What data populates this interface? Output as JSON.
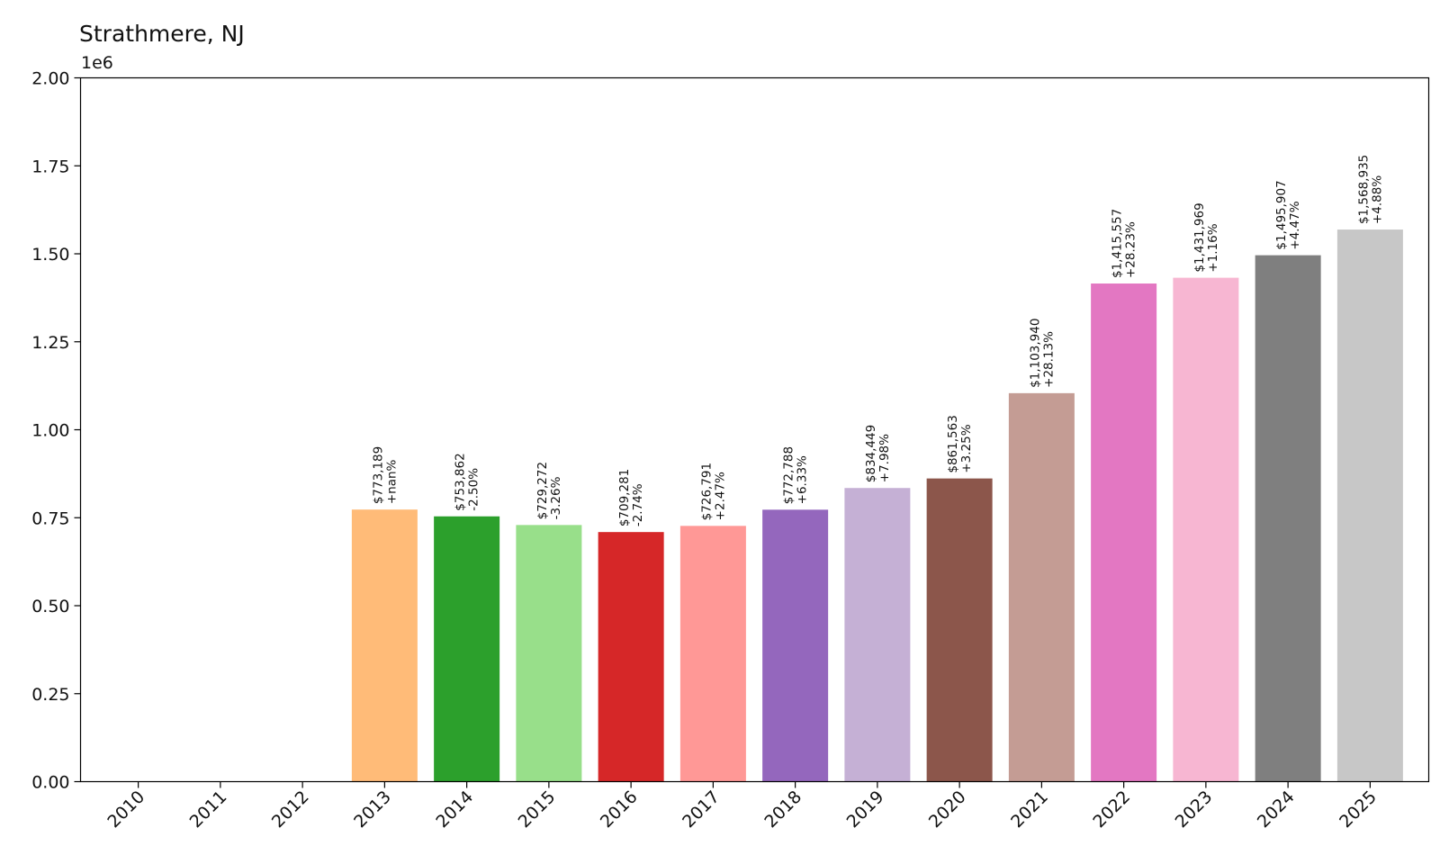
{
  "chart_data": {
    "type": "bar",
    "title": "Strathmere, NJ",
    "offset_text": "1e6",
    "xlabel": "",
    "ylabel": "",
    "ylim": [
      0,
      2000000
    ],
    "yticks": [
      0,
      250000,
      500000,
      750000,
      1000000,
      1250000,
      1500000,
      1750000,
      2000000
    ],
    "ytick_labels": [
      "0.00",
      "0.25",
      "0.50",
      "0.75",
      "1.00",
      "1.25",
      "1.50",
      "1.75",
      "2.00"
    ],
    "categories": [
      "2010",
      "2011",
      "2012",
      "2013",
      "2014",
      "2015",
      "2016",
      "2017",
      "2018",
      "2019",
      "2020",
      "2021",
      "2022",
      "2023",
      "2024",
      "2025"
    ],
    "values": [
      0,
      0,
      0,
      773189,
      753862,
      729272,
      709281,
      726791,
      772788,
      834449,
      861563,
      1103940,
      1415557,
      1431969,
      1495907,
      1568935
    ],
    "bar_labels": [
      null,
      null,
      null,
      {
        "price": "$773,189",
        "change": "+nan%"
      },
      {
        "price": "$753,862",
        "change": "-2.50%"
      },
      {
        "price": "$729,272",
        "change": "-3.26%"
      },
      {
        "price": "$709,281",
        "change": "-2.74%"
      },
      {
        "price": "$726,791",
        "change": "+2.47%"
      },
      {
        "price": "$772,788",
        "change": "+6.33%"
      },
      {
        "price": "$834,449",
        "change": "+7.98%"
      },
      {
        "price": "$861,563",
        "change": "+3.25%"
      },
      {
        "price": "$1,103,940",
        "change": "+28.13%"
      },
      {
        "price": "$1,415,557",
        "change": "+28.23%"
      },
      {
        "price": "$1,431,969",
        "change": "+1.16%"
      },
      {
        "price": "$1,495,907",
        "change": "+4.47%"
      },
      {
        "price": "$1,568,935",
        "change": "+4.88%"
      }
    ],
    "colors": [
      "#1f77b4",
      "#aec7e8",
      "#ff7f0e",
      "#ffbb78",
      "#2ca02c",
      "#98df8a",
      "#d62728",
      "#ff9896",
      "#9467bd",
      "#c5b0d5",
      "#8c564b",
      "#c49c94",
      "#e377c2",
      "#f7b6d2",
      "#7f7f7f",
      "#c7c7c7"
    ],
    "grid": false,
    "legend": null
  }
}
